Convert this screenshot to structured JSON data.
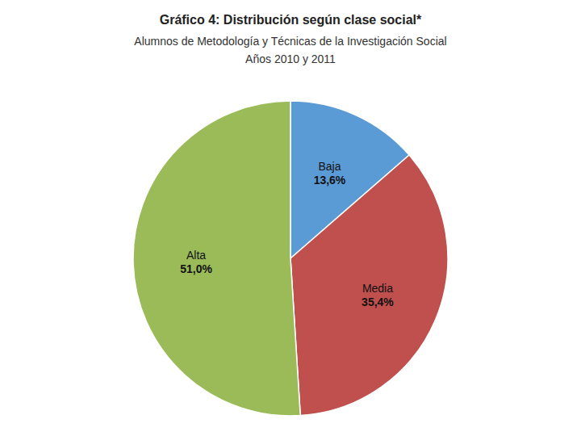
{
  "chart_data": {
    "type": "pie",
    "title": "Gráfico 4: Distribución según clase social*",
    "subtitle": [
      "Alumnos de Metodología y Técnicas de la Investigación Social",
      "Años 2010 y 2011"
    ],
    "categories": [
      "Baja",
      "Media",
      "Alta"
    ],
    "values": [
      13.6,
      35.4,
      51.0
    ],
    "value_labels": [
      "13,6%",
      "35,4%",
      "51,0%"
    ],
    "colors": [
      "#5B9BD5",
      "#C0504D",
      "#9BBB59"
    ],
    "data_labels": true
  }
}
